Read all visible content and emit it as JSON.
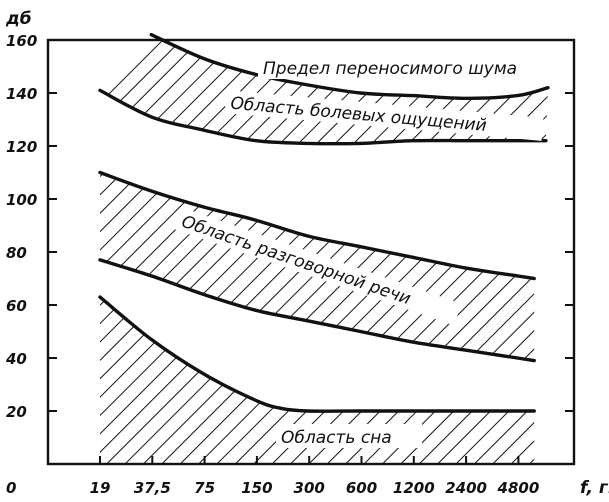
{
  "chart_data": {
    "type": "area",
    "ylabel": "дб",
    "xlabel": "f, гц",
    "ylim": [
      0,
      160
    ],
    "yticks": [
      "0",
      "20",
      "40",
      "60",
      "80",
      "100",
      "120",
      "140",
      "160"
    ],
    "x_ticks": [
      "19",
      "37,5",
      "75",
      "150",
      "300",
      "600",
      "1200",
      "2400",
      "4800"
    ],
    "grid": false,
    "series": [
      {
        "name": "Предел переносимого шума",
        "x": [
          37.5,
          75,
          150,
          300,
          600,
          1200,
          2400,
          4800,
          7200
        ],
        "y": [
          162,
          153,
          147,
          143,
          140,
          139,
          138,
          139,
          142
        ]
      },
      {
        "name": "",
        "x": [
          19,
          37.5,
          75,
          150,
          300,
          600,
          1200,
          2400,
          4800,
          7000
        ],
        "y": [
          141,
          131,
          126,
          122,
          121,
          121,
          122,
          122,
          122,
          122
        ]
      },
      {
        "name": "",
        "x": [
          19,
          37.5,
          75,
          150,
          300,
          600,
          1200,
          2400,
          4800,
          6000
        ],
        "y": [
          110,
          103,
          97,
          92,
          86,
          82,
          78,
          74,
          71,
          70
        ]
      },
      {
        "name": "",
        "x": [
          19,
          37.5,
          75,
          150,
          300,
          600,
          1200,
          2400,
          4800,
          6000
        ],
        "y": [
          77,
          71,
          64,
          58,
          54,
          50,
          46,
          43,
          40,
          39
        ]
      },
      {
        "name": "",
        "x": [
          19,
          37.5,
          75,
          150,
          210,
          300,
          600,
          1200,
          2400,
          4800,
          6000
        ],
        "y": [
          63,
          47,
          34,
          24,
          21,
          20,
          20,
          20,
          20,
          20,
          20
        ]
      }
    ],
    "regions": [
      {
        "name": "Область болевых ощущений",
        "between": [
          0,
          1
        ]
      },
      {
        "name": "Область разговорной речи",
        "between": [
          2,
          3
        ]
      },
      {
        "name": "Область сна",
        "between": [
          4,
          "axis"
        ]
      }
    ],
    "annotations": [
      "Предел переносимого шума",
      "Область болевых ощущений",
      "Область разговорной речи",
      "Область сна"
    ]
  }
}
